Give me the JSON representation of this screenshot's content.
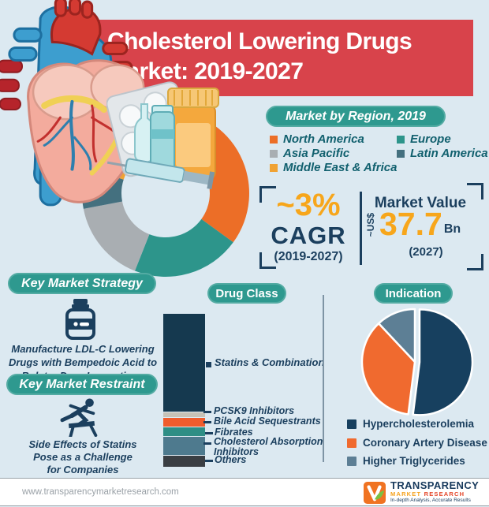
{
  "theme": {
    "bg": "#dce9f1",
    "red": "#d8434b",
    "teal": "#2e998f",
    "navy": "#1b3f5e",
    "orange": "#f7a61b",
    "legendteal": "#11606e"
  },
  "header": {
    "title": "Cholesterol Lowering Drugs\nMarket: 2019-2027"
  },
  "region_section": {
    "header": "Market by Region, 2019"
  },
  "stats": {
    "cagr_value": "~3%",
    "cagr_label": "CAGR",
    "cagr_period": "(2019-2027)",
    "market_value_title": "Market Value",
    "market_value_currency": "~US$",
    "market_value_number": "37.7",
    "market_value_unit": "Bn",
    "market_value_year": "(2027)"
  },
  "strategy": {
    "header": "Key Market Strategy",
    "text": "Manufacture LDL-C Lowering\nDrugs with Bempedoic Acid to\nBolster Drug Innovations"
  },
  "restraint": {
    "header": "Key Market Restraint",
    "text": "Side Effects of Statins\nPose as a Challenge\nfor Companies"
  },
  "footer": {
    "url": "www.transparencymarketresearch.com",
    "logo_line1": "TRANSPARENCY",
    "logo_line2a": "MARKET",
    "logo_line2b": "RESEARCH",
    "logo_tagline": "In-depth Analysis, Accurate Results"
  },
  "chart_data": [
    {
      "id": "region-donut",
      "type": "pie",
      "subtype": "donut",
      "title": "Market by Region, 2019",
      "legend_position": "top-right",
      "slices": [
        {
          "label": "North America",
          "value": 35,
          "color": "#ec6e27"
        },
        {
          "label": "Europe",
          "value": 21,
          "color": "#2d958b"
        },
        {
          "label": "Asia Pacific",
          "value": 16,
          "color": "#a9aeb2"
        },
        {
          "label": "Latin America",
          "value": 8,
          "color": "#44707f"
        },
        {
          "label": "Middle East & Africa",
          "value": 20,
          "color": "#f0a233"
        }
      ]
    },
    {
      "id": "drug-class-bar",
      "type": "bar",
      "subtype": "stacked-single-column",
      "title": "Drug Class",
      "unit": "percent share (estimated from segment heights)",
      "segments": [
        {
          "label": "Statins & Combination",
          "value": 65.6,
          "color": "#15394f"
        },
        {
          "label": "PCSK9 Inhibitors",
          "value": 3.2,
          "color": "#c6c2b7"
        },
        {
          "label": "Bile Acid Sequestrants",
          "value": 5.8,
          "color": "#f05c2c"
        },
        {
          "label": "Fibrates",
          "value": 5.8,
          "color": "#2e8e85"
        },
        {
          "label": "Cholesterol Absorption\nInhibitors",
          "value": 12.2,
          "color": "#4e7a8e"
        },
        {
          "label": "Others",
          "value": 7.4,
          "color": "#3a3e43"
        }
      ]
    },
    {
      "id": "indication-pie",
      "type": "pie",
      "title": "Indication",
      "legend_position": "bottom",
      "slices": [
        {
          "label": "Hypercholesterolemia",
          "value": 52,
          "color": "#17405f",
          "explode": 6
        },
        {
          "label": "Coronary Artery Disease",
          "value": 36,
          "color": "#f06a2f",
          "explode": 0
        },
        {
          "label": "Higher Triglycerides",
          "value": 12,
          "color": "#5d7f95",
          "explode": 0
        }
      ]
    }
  ]
}
